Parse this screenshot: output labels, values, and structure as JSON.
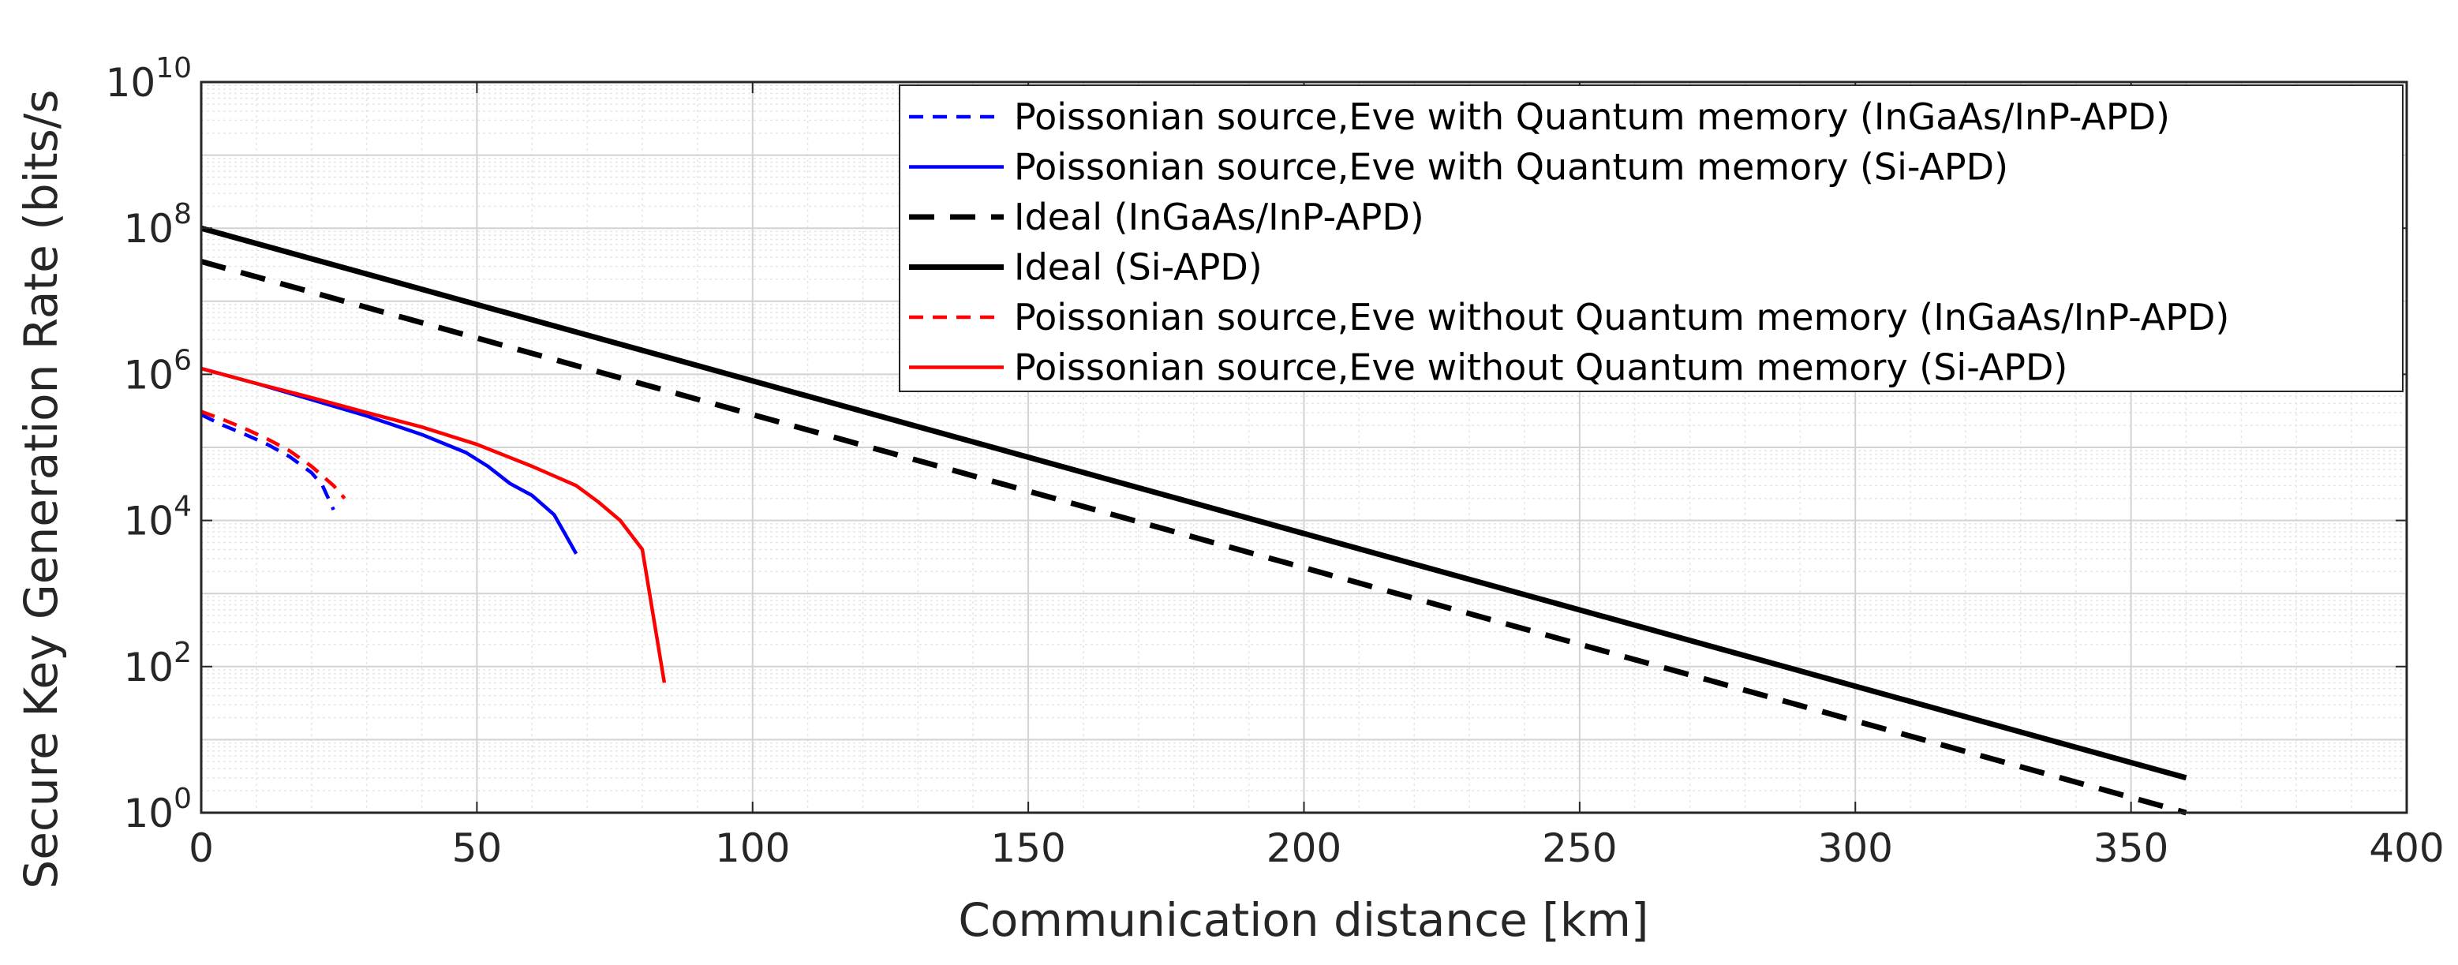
{
  "chart_data": {
    "type": "line",
    "xlabel": "Communication distance [km]",
    "ylabel": "Secure Key Generation Rate (bits/s",
    "xlim": [
      0,
      400
    ],
    "ylim": [
      1,
      10000000000
    ],
    "yscale": "log",
    "grid": true,
    "minor_grid": true,
    "legend_position": "top-right",
    "x_ticks": [
      "0",
      "50",
      "100",
      "150",
      "200",
      "250",
      "300",
      "350",
      "400"
    ],
    "y_ticks": [
      {
        "base": "10",
        "exp": "0"
      },
      {
        "base": "10",
        "exp": "2"
      },
      {
        "base": "10",
        "exp": "4"
      },
      {
        "base": "10",
        "exp": "6"
      },
      {
        "base": "10",
        "exp": "8"
      },
      {
        "base": "10",
        "exp": "10"
      }
    ],
    "series": [
      {
        "name": "Poissonian source,Eve with Quantum memory (InGaAs/InP-APD)",
        "color": "#0000ff",
        "style": "dashed",
        "x": [
          0,
          4,
          8,
          12,
          16,
          20,
          22,
          24
        ],
        "y": [
          280000,
          200000,
          150000,
          110000,
          75000,
          45000,
          30000,
          14000
        ]
      },
      {
        "name": "Poissonian source,Eve with Quantum memory (Si-APD)",
        "color": "#0000ff",
        "style": "solid",
        "x": [
          0,
          10,
          20,
          30,
          40,
          48,
          52,
          56,
          60,
          64,
          66,
          68
        ],
        "y": [
          1200000,
          750000,
          450000,
          270000,
          150000,
          85000,
          55000,
          32000,
          22000,
          12000,
          6500,
          3500
        ]
      },
      {
        "name": "Ideal (InGaAs/InP-APD)",
        "color": "#000000",
        "style": "dashed",
        "x": [
          0,
          360
        ],
        "y": [
          35000000,
          1
        ]
      },
      {
        "name": "Ideal (Si-APD)",
        "color": "#000000",
        "style": "solid",
        "x": [
          0,
          360
        ],
        "y": [
          100000000,
          3
        ]
      },
      {
        "name": "Poissonian source,Eve without Quantum memory (InGaAs/InP-APD)",
        "color": "#ff0000",
        "style": "dashed",
        "x": [
          0,
          4,
          8,
          12,
          16,
          20,
          24,
          26
        ],
        "y": [
          310000,
          240000,
          180000,
          130000,
          90000,
          55000,
          30000,
          20000
        ]
      },
      {
        "name": "Poissonian source,Eve without Quantum memory (Si-APD)",
        "color": "#ff0000",
        "style": "solid",
        "x": [
          0,
          10,
          20,
          30,
          40,
          50,
          60,
          68,
          72,
          76,
          80,
          84
        ],
        "y": [
          1200000,
          750000,
          480000,
          300000,
          190000,
          110000,
          55000,
          30000,
          18000,
          10000,
          4000,
          60
        ]
      }
    ]
  }
}
